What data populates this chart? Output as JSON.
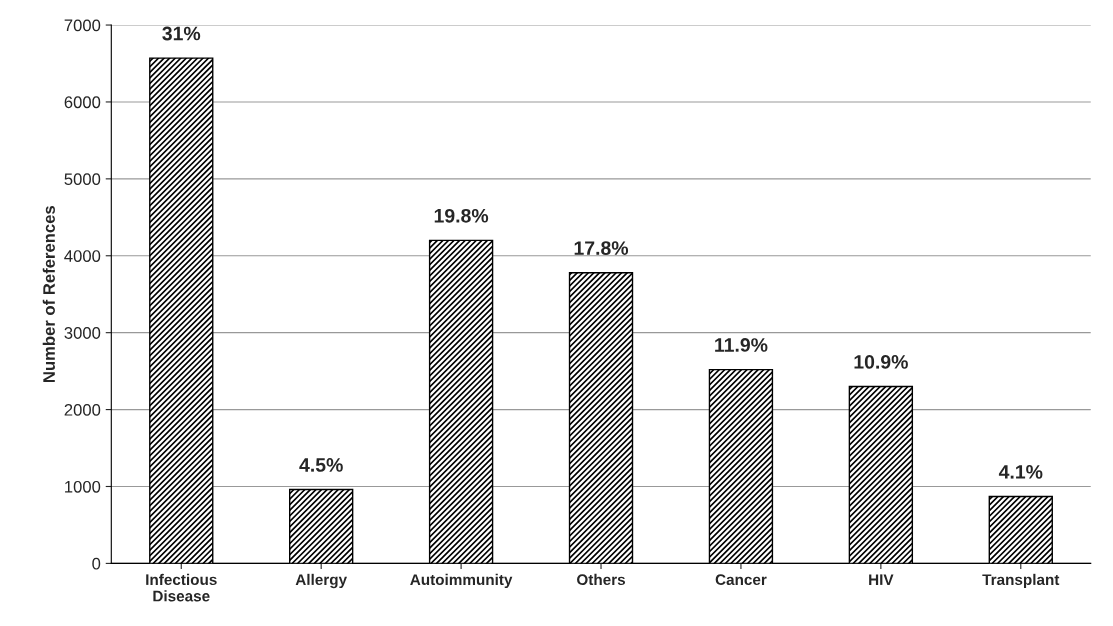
{
  "chart_data": {
    "type": "bar",
    "ylabel": "Number of References",
    "categories": [
      "Infectious\nDisease",
      "Allergy",
      "Autoimmunity",
      "Others",
      "Cancer",
      "HIV",
      "Transplant"
    ],
    "values": [
      6570,
      960,
      4200,
      3780,
      2520,
      2300,
      870
    ],
    "annotations": [
      {
        "text": "31%",
        "x": "Infectious\nDisease",
        "y": 6570
      },
      {
        "text": "4.5%",
        "x": "Allergy",
        "y": 960
      },
      {
        "text": "19.8%",
        "x": "Autoimmunity",
        "y": 4200
      },
      {
        "text": "17.8%",
        "x": "Others",
        "y": 3780
      },
      {
        "text": "11.9%",
        "x": "Cancer",
        "y": 2520
      },
      {
        "text": "10.9%",
        "x": "HIV",
        "y": 2300
      },
      {
        "text": "4.1%",
        "x": "Transplant",
        "y": 870
      }
    ],
    "color": "#000000",
    "ylim": [
      0,
      7000
    ],
    "yticks": [
      0,
      1000,
      2000,
      3000,
      4000,
      5000,
      6000,
      7000
    ],
    "grid": "y"
  }
}
